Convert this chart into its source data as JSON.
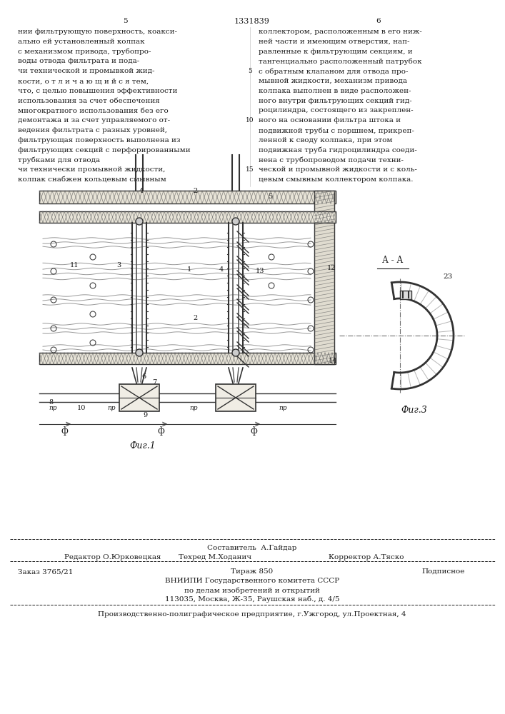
{
  "page_numbers": [
    "5",
    "6"
  ],
  "patent_number": "1331839",
  "col1_lines": [
    "нии фильтрующую поверхность, коакси-",
    "ально ей установленный колпак",
    "с механизмом привода, трубопро-",
    "воды отвода фильтрата и пода-",
    "чи технической и промывкой жид-",
    "кости, о т л и ч а ю щ и й с я тем,",
    "что, с целью повышения эффективности",
    "использования за счет обеспечения",
    "многократного использования без его",
    "демонтажа и за счет управляемого от-",
    "ведения фильтрата с разных уровней,",
    "фильтрующая поверхность выполнена из",
    "фильтрующих секций с перфорированными",
    "трубками для отвода",
    "чи технически промывной жидкости,",
    "колпак снабжен кольцевым смывным"
  ],
  "col2_lines": [
    "коллектором, расположенным в его ниж-",
    "ней части и имеющим отверстия, нап-",
    "равленные к фильтрующим секциям, и",
    "тангенциально расположенный патрубок",
    "с обратным клапаном для отвода про-",
    "мывной жидкости, механизм привода",
    "колпака выполнен в виде расположен-",
    "ного внутри фильтрующих секций гид-",
    "роцилиндра, состоящего из закреплен-",
    "ного на основании фильтра штока и",
    "подвижной трубы с поршнем, прикреп-",
    "ленной к своду колпака, при этом",
    "подвижная труба гидроцилиндра соеди-",
    "нена с трубопроводом подачи техни-",
    "ческой и промывной жидкости и с коль-",
    "цевым смывным коллектором колпака."
  ],
  "line_nums": {
    "4": "5",
    "9": "10",
    "14": "15"
  },
  "fig1_label": "Фиг.1",
  "fig3_label": "Фиг.3",
  "aa_label": "А - А",
  "editor_line": "Редактор О.Юрковецкая",
  "compiler_line": "Составитель  А.Гайдар",
  "techred_line": "Техред М.Ходанич",
  "corrector_line": "Корректор А.Тяско",
  "order_line": "Заказ 3765/21",
  "circulation_line": "Тираж 850",
  "signed_line": "Подписное",
  "org_line1": "ВНИИПИ Государственного комитета СССР",
  "org_line2": "по делам изобретений и открытий",
  "org_line3": "113035, Москва, Ж-35, Раушская наб., д. 4/5",
  "production_line": "Производственно-полиграфическое предприятие, г.Ужгород, ул.Проектная, 4",
  "bg_color": "#ffffff",
  "text_color": "#1a1a1a",
  "fs": 7.5,
  "fs_small": 6.5
}
